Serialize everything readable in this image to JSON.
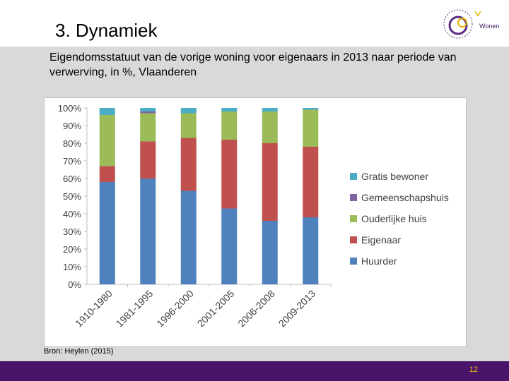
{
  "slide": {
    "title": "3. Dynamiek",
    "subtitle": "Eigendomsstatuut van de vorige woning voor eigenaars in 2013 naar periode van verwerving, in %, Vlaanderen",
    "source": "Bron: Heylen (2015)",
    "page_number": "12",
    "logo_text": "Wonen"
  },
  "colors": {
    "Huurder": "#4f81bd",
    "Eigenaar": "#c0504d",
    "Ouderlijke huis": "#9bbb59",
    "Gemeenschapshuis": "#8064a2",
    "Gratis bewoner": "#4bacc6",
    "footer": "#4b146b",
    "page_number": "#f2c200"
  },
  "chart_data": {
    "type": "bar",
    "stacked": true,
    "categories": [
      "1910-1980",
      "1981-1995",
      "1996-2000",
      "2001-2005",
      "2006-2008",
      "2009-2013"
    ],
    "series": [
      {
        "name": "Huurder",
        "values": [
          58,
          60,
          53,
          43,
          36,
          38
        ]
      },
      {
        "name": "Eigenaar",
        "values": [
          9,
          21,
          30,
          39,
          44,
          40
        ]
      },
      {
        "name": "Ouderlijke huis",
        "values": [
          29,
          16,
          14,
          16,
          18,
          21
        ]
      },
      {
        "name": "Gemeenschapshuis",
        "values": [
          0,
          1,
          0,
          0,
          0,
          0
        ]
      },
      {
        "name": "Gratis bewoner",
        "values": [
          4,
          2,
          3,
          2,
          2,
          1
        ]
      }
    ],
    "legend_order": [
      "Gratis bewoner",
      "Gemeenschapshuis",
      "Ouderlijke huis",
      "Eigenaar",
      "Huurder"
    ],
    "y_ticks": [
      "0%",
      "10%",
      "20%",
      "30%",
      "40%",
      "50%",
      "60%",
      "70%",
      "80%",
      "90%",
      "100%"
    ],
    "ylim": [
      0,
      100
    ],
    "legend_position": "right",
    "grid": false
  }
}
